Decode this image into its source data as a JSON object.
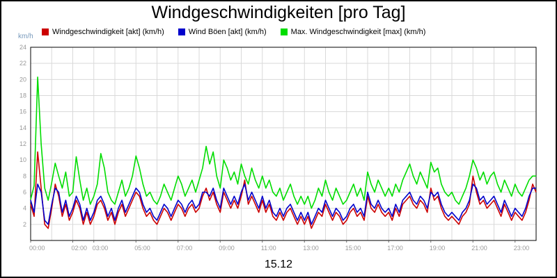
{
  "page": {
    "title": "Windgeschwindigkeiten [pro Tag]",
    "y_unit_label": "km/h",
    "date_label": "15.12"
  },
  "colors": {
    "grid": "#d9d9d9",
    "axis_text": "#999999",
    "unit_text": "#7799bb",
    "plot_border": "#000000"
  },
  "chart_data": {
    "type": "line",
    "title": "Windgeschwindigkeiten [pro Tag]",
    "xlabel": "15.12",
    "ylabel": "km/h",
    "ylim": [
      0,
      24
    ],
    "xlim_hours": [
      0,
      24
    ],
    "grid": true,
    "legend_position": "top",
    "sample_interval_minutes": 10,
    "y_ticks": [
      2,
      4,
      6,
      8,
      10,
      12,
      14,
      16,
      18,
      20,
      22,
      24
    ],
    "x_ticks": [
      {
        "hour": 0,
        "label": "00:00"
      },
      {
        "hour": 2,
        "label": "02:00"
      },
      {
        "hour": 3,
        "label": "03:00"
      },
      {
        "hour": 5,
        "label": "05:00"
      },
      {
        "hour": 7,
        "label": "07:00"
      },
      {
        "hour": 9,
        "label": "09:00"
      },
      {
        "hour": 11,
        "label": "11:00"
      },
      {
        "hour": 13,
        "label": "13:00"
      },
      {
        "hour": 15,
        "label": "15:00"
      },
      {
        "hour": 17,
        "label": "17:00"
      },
      {
        "hour": 19,
        "label": "19:00"
      },
      {
        "hour": 21,
        "label": "21:00"
      },
      {
        "hour": 23,
        "label": "23:00"
      }
    ],
    "series": [
      {
        "name": "Windgeschwindigkeit [akt] (km/h)",
        "color": "#cc0000",
        "values": [
          4.5,
          3.0,
          11.0,
          6.5,
          2.0,
          1.5,
          4.0,
          7.0,
          5.5,
          3.0,
          4.5,
          2.5,
          3.5,
          5.0,
          4.0,
          2.0,
          3.5,
          2.0,
          3.0,
          4.5,
          5.0,
          4.0,
          2.5,
          3.5,
          2.0,
          3.5,
          4.5,
          3.0,
          4.0,
          5.0,
          6.0,
          5.5,
          4.0,
          3.0,
          3.5,
          2.5,
          2.0,
          3.0,
          4.0,
          3.5,
          2.5,
          3.5,
          4.5,
          4.0,
          3.0,
          4.0,
          4.5,
          3.5,
          4.0,
          5.5,
          6.5,
          5.0,
          6.0,
          4.5,
          3.5,
          6.0,
          5.0,
          4.0,
          5.0,
          4.0,
          5.5,
          7.5,
          4.5,
          5.5,
          4.5,
          3.5,
          5.0,
          3.5,
          4.5,
          3.0,
          2.5,
          3.5,
          2.5,
          3.5,
          4.0,
          3.0,
          2.0,
          3.0,
          2.0,
          3.0,
          1.5,
          2.5,
          3.5,
          3.0,
          4.5,
          3.5,
          2.5,
          3.5,
          3.0,
          2.0,
          2.5,
          3.5,
          4.0,
          3.0,
          3.5,
          2.5,
          5.5,
          4.0,
          3.5,
          4.5,
          3.5,
          3.0,
          3.5,
          2.5,
          4.0,
          3.0,
          4.5,
          5.0,
          5.5,
          4.5,
          4.0,
          5.0,
          4.5,
          3.5,
          6.5,
          5.0,
          5.5,
          4.0,
          3.0,
          2.5,
          3.0,
          2.5,
          2.0,
          3.0,
          3.5,
          4.5,
          8.0,
          6.0,
          4.5,
          5.0,
          4.0,
          4.5,
          5.0,
          4.0,
          3.0,
          4.5,
          3.5,
          2.5,
          3.5,
          3.0,
          2.5,
          3.5,
          5.0,
          7.0,
          6.0
        ]
      },
      {
        "name": "Wind Böen [akt] (km/h)",
        "color": "#0000cc",
        "values": [
          5.0,
          3.5,
          7.0,
          6.0,
          2.5,
          2.0,
          4.5,
          6.5,
          6.0,
          3.5,
          5.0,
          3.0,
          4.0,
          5.5,
          4.5,
          2.5,
          4.0,
          2.5,
          3.5,
          5.0,
          5.5,
          4.5,
          3.0,
          4.0,
          2.5,
          4.0,
          5.0,
          3.5,
          4.5,
          5.5,
          6.5,
          6.0,
          4.5,
          3.5,
          4.0,
          3.0,
          2.5,
          3.5,
          4.5,
          4.0,
          3.0,
          4.0,
          5.0,
          4.5,
          3.5,
          4.5,
          5.0,
          4.0,
          4.5,
          6.0,
          6.0,
          5.5,
          6.5,
          5.0,
          4.0,
          6.5,
          5.5,
          4.5,
          5.5,
          4.5,
          6.0,
          7.0,
          5.0,
          6.0,
          5.0,
          4.0,
          5.5,
          4.0,
          5.0,
          3.5,
          3.0,
          4.0,
          3.0,
          4.0,
          4.5,
          3.5,
          2.5,
          3.5,
          2.5,
          3.5,
          2.0,
          3.0,
          4.0,
          3.5,
          5.0,
          4.0,
          3.0,
          4.0,
          3.5,
          2.5,
          3.0,
          4.0,
          4.5,
          3.5,
          4.0,
          3.0,
          6.0,
          4.5,
          4.0,
          5.0,
          4.0,
          3.5,
          4.0,
          3.0,
          4.5,
          3.5,
          5.0,
          5.5,
          6.0,
          5.0,
          4.5,
          5.5,
          5.0,
          4.0,
          6.0,
          5.5,
          6.0,
          4.5,
          3.5,
          3.0,
          3.5,
          3.0,
          2.5,
          3.5,
          4.0,
          5.0,
          7.0,
          6.5,
          5.0,
          5.5,
          4.5,
          5.0,
          5.5,
          4.5,
          3.5,
          5.0,
          4.0,
          3.0,
          4.0,
          3.5,
          3.0,
          4.0,
          5.5,
          6.5,
          6.5
        ]
      },
      {
        "name": "Max. Windgeschwindigkeit [max] (km/h)",
        "color": "#00dd00",
        "values": [
          5.1,
          6.8,
          20.3,
          12.0,
          6.5,
          5.0,
          7.2,
          9.6,
          8.0,
          6.5,
          8.5,
          5.5,
          6.0,
          10.4,
          7.5,
          5.0,
          6.5,
          4.5,
          5.5,
          7.0,
          10.8,
          9.0,
          6.0,
          5.0,
          4.5,
          6.0,
          7.5,
          5.5,
          6.5,
          8.0,
          10.5,
          9.0,
          7.0,
          5.5,
          6.0,
          5.0,
          4.5,
          5.5,
          7.0,
          6.0,
          5.0,
          6.5,
          8.0,
          7.0,
          5.5,
          6.5,
          7.5,
          6.0,
          7.5,
          9.0,
          11.7,
          9.5,
          11.0,
          8.0,
          6.5,
          10.0,
          9.0,
          7.5,
          8.5,
          7.0,
          9.5,
          8.0,
          7.0,
          9.0,
          7.5,
          6.5,
          8.0,
          6.5,
          7.5,
          6.0,
          5.5,
          6.5,
          5.0,
          6.0,
          7.0,
          5.5,
          4.5,
          5.5,
          4.5,
          5.5,
          4.0,
          5.0,
          6.5,
          5.5,
          7.5,
          6.0,
          5.0,
          6.5,
          5.5,
          4.5,
          5.0,
          6.0,
          7.0,
          5.5,
          6.5,
          5.0,
          8.5,
          7.0,
          6.0,
          7.5,
          6.5,
          5.5,
          6.5,
          5.5,
          7.0,
          6.0,
          7.5,
          8.5,
          9.5,
          8.0,
          7.0,
          8.5,
          7.5,
          6.5,
          9.7,
          8.5,
          9.0,
          7.0,
          6.0,
          5.5,
          6.0,
          5.0,
          4.5,
          5.5,
          6.5,
          8.0,
          10.0,
          9.0,
          7.5,
          8.5,
          7.0,
          8.0,
          8.5,
          7.0,
          6.0,
          7.5,
          6.5,
          5.5,
          7.0,
          6.0,
          5.5,
          6.5,
          7.5,
          8.0,
          8.0
        ]
      }
    ]
  }
}
